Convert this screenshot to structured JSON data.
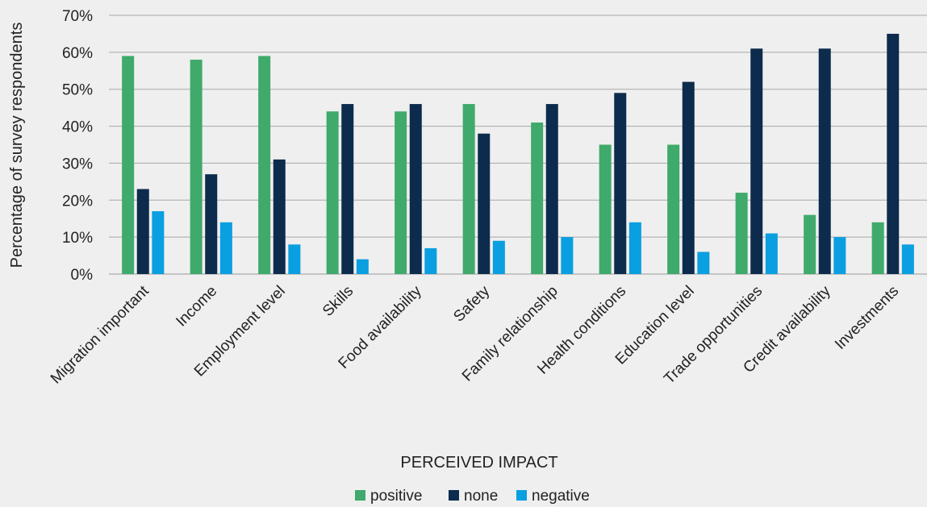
{
  "chart_data": {
    "type": "bar",
    "xlabel": "PERCEIVED IMPACT",
    "ylabel": "Percentage of survey respondents",
    "ylim": [
      0,
      70
    ],
    "y_ticks": [
      0,
      10,
      20,
      30,
      40,
      50,
      60,
      70
    ],
    "y_tick_format": "{v}%",
    "grid": true,
    "legend_position": "bottom",
    "categories": [
      "Migration important",
      "Income",
      "Employment level",
      "Skills",
      "Food availability",
      "Safety",
      "Family relationship",
      "Health conditions",
      "Education level",
      "Trade opportunities",
      "Credit availability",
      "Investments"
    ],
    "series": [
      {
        "name": "positive",
        "color": "#3faa6b",
        "values": [
          59,
          58,
          59,
          44,
          44,
          46,
          41,
          35,
          35,
          22,
          16,
          14
        ]
      },
      {
        "name": "none",
        "color": "#0d2b4c",
        "values": [
          23,
          27,
          31,
          46,
          46,
          38,
          46,
          49,
          52,
          61,
          61,
          65
        ]
      },
      {
        "name": "negative",
        "color": "#0a9fe0",
        "values": [
          17,
          14,
          8,
          4,
          7,
          9,
          10,
          14,
          6,
          11,
          10,
          8
        ]
      }
    ]
  }
}
